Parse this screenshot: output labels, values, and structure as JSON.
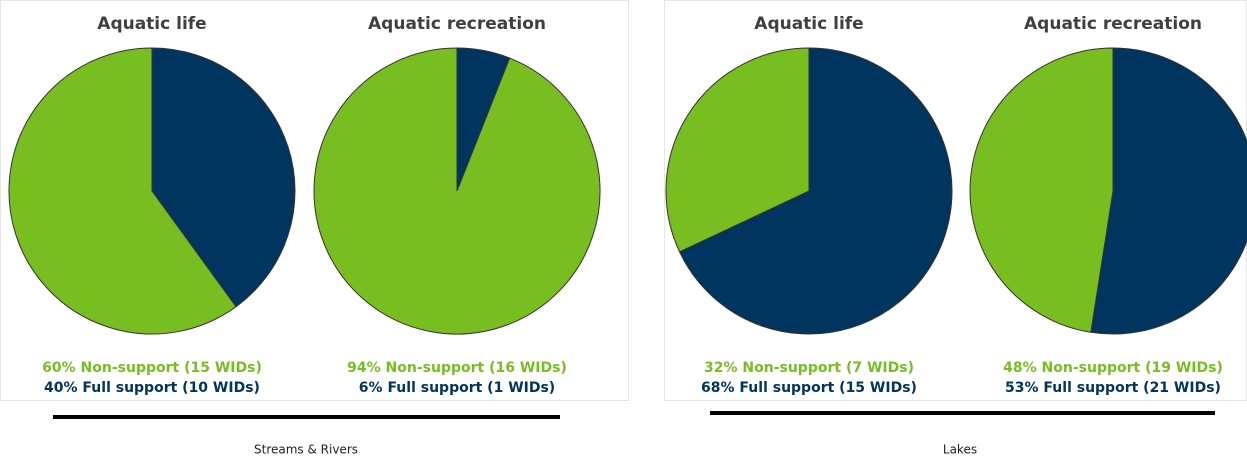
{
  "chart_data": [
    {
      "type": "pie",
      "title": "Aquatic life",
      "categories": [
        "Non-support",
        "Full support"
      ],
      "colors": [
        "#78be21",
        "#003560"
      ],
      "values": [
        60,
        40
      ],
      "value_labels": [
        "60% Non-support (15 WIDs)",
        "40% Full support (10 WIDs)"
      ]
    },
    {
      "type": "pie",
      "title": "Aquatic recreation",
      "categories": [
        "Non-support",
        "Full support"
      ],
      "colors": [
        "#78be21",
        "#003560"
      ],
      "values": [
        94,
        6
      ],
      "value_labels": [
        "94% Non-support (16 WIDs)",
        "6% Full support (1 WIDs)"
      ]
    },
    {
      "type": "pie",
      "title": "Aquatic life",
      "categories": [
        "Non-support",
        "Full support"
      ],
      "colors": [
        "#78be21",
        "#003560"
      ],
      "values": [
        32,
        68
      ],
      "value_labels": [
        "32% Non-support (7 WIDs)",
        "68% Full support (15 WIDs)"
      ]
    },
    {
      "type": "pie",
      "title": "Aquatic recreation",
      "categories": [
        "Non-support",
        "Full support"
      ],
      "colors": [
        "#78be21",
        "#003560"
      ],
      "values": [
        48,
        53
      ],
      "value_labels": [
        "48% Non-support (19 WIDs)",
        "53% Full support (21 WIDs)"
      ]
    }
  ],
  "captions": [
    "Streams & Rivers",
    "Lakes"
  ]
}
